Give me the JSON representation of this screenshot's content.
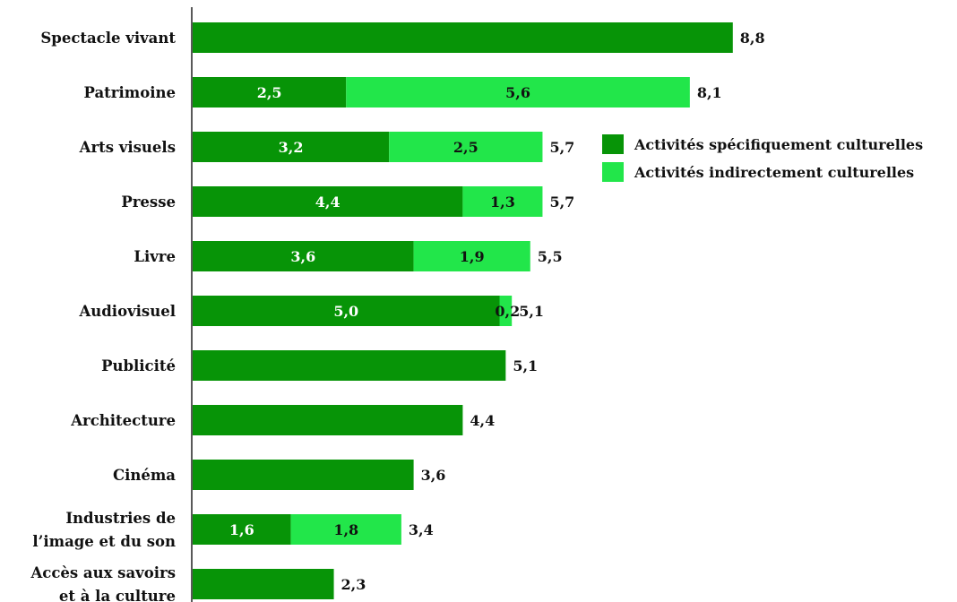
{
  "chart_data": {
    "type": "bar",
    "orientation": "horizontal",
    "stacked": true,
    "categories": [
      [
        "Spectacle vivant"
      ],
      [
        "Patrimoine"
      ],
      [
        "Arts visuels"
      ],
      [
        "Presse"
      ],
      [
        "Livre"
      ],
      [
        "Audiovisuel"
      ],
      [
        "Publicité"
      ],
      [
        "Architecture"
      ],
      [
        "Cinéma"
      ],
      [
        "Industries de",
        "l’image et du son"
      ],
      [
        "Accès aux savoirs",
        "et à la culture"
      ]
    ],
    "series": [
      {
        "name": "Activités spécifiquement culturelles",
        "color": "#079407",
        "values": [
          8.8,
          2.5,
          3.2,
          4.4,
          3.6,
          5.0,
          5.1,
          4.4,
          3.6,
          1.6,
          2.3
        ],
        "labels": [
          "",
          "2,5",
          "3,2",
          "4,4",
          "3,6",
          "5,0",
          "",
          "",
          "",
          "1,6",
          ""
        ]
      },
      {
        "name": "Activités indirectement culturelles",
        "color": "#22e64a",
        "values": [
          0,
          5.6,
          2.5,
          1.3,
          1.9,
          0.2,
          0,
          0,
          0,
          1.8,
          0
        ],
        "labels": [
          "",
          "5,6",
          "2,5",
          "1,3",
          "1,9",
          "0,2",
          "",
          "",
          "",
          "1,8",
          ""
        ]
      }
    ],
    "totals": [
      "8,8",
      "8,1",
      "5,7",
      "5,7",
      "5,5",
      "5,1",
      "5,1",
      "4,4",
      "3,6",
      "3,4",
      "2,3"
    ],
    "legend_position": "right",
    "grid": false
  }
}
